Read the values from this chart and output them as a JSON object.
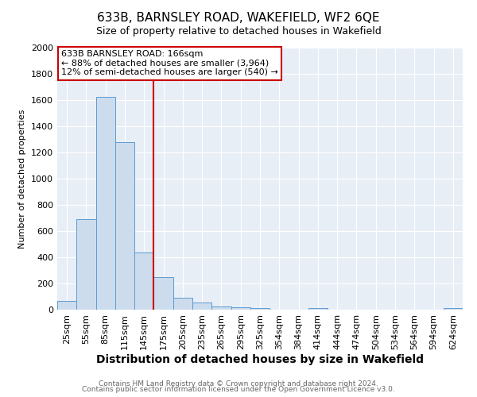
{
  "title": "633B, BARNSLEY ROAD, WAKEFIELD, WF2 6QE",
  "subtitle": "Size of property relative to detached houses in Wakefield",
  "xlabel": "Distribution of detached houses by size in Wakefield",
  "ylabel": "Number of detached properties",
  "bin_labels": [
    "25sqm",
    "55sqm",
    "85sqm",
    "115sqm",
    "145sqm",
    "175sqm",
    "205sqm",
    "235sqm",
    "265sqm",
    "295sqm",
    "325sqm",
    "354sqm",
    "384sqm",
    "414sqm",
    "444sqm",
    "474sqm",
    "504sqm",
    "534sqm",
    "564sqm",
    "594sqm",
    "624sqm"
  ],
  "bar_heights": [
    65,
    690,
    1625,
    1280,
    435,
    250,
    90,
    55,
    25,
    20,
    15,
    0,
    0,
    15,
    0,
    0,
    0,
    0,
    0,
    0,
    15
  ],
  "bar_color": "#ccdcec",
  "bar_edge_color": "#5b9bd5",
  "vline_x_index": 5,
  "vline_color": "#cc0000",
  "annotation_line1": "633B BARNSLEY ROAD: 166sqm",
  "annotation_line2": "← 88% of detached houses are smaller (3,964)",
  "annotation_line3": "12% of semi-detached houses are larger (540) →",
  "ylim": [
    0,
    2000
  ],
  "yticks": [
    0,
    200,
    400,
    600,
    800,
    1000,
    1200,
    1400,
    1600,
    1800,
    2000
  ],
  "footer_line1": "Contains HM Land Registry data © Crown copyright and database right 2024.",
  "footer_line2": "Contains public sector information licensed under the Open Government Licence v3.0.",
  "fig_bg_color": "#ffffff",
  "plot_bg_color": "#e8eef6",
  "grid_color": "#ffffff",
  "title_fontsize": 11,
  "subtitle_fontsize": 9,
  "xlabel_fontsize": 10,
  "ylabel_fontsize": 8,
  "tick_fontsize": 8,
  "annotation_fontsize": 8,
  "footer_fontsize": 6.5
}
